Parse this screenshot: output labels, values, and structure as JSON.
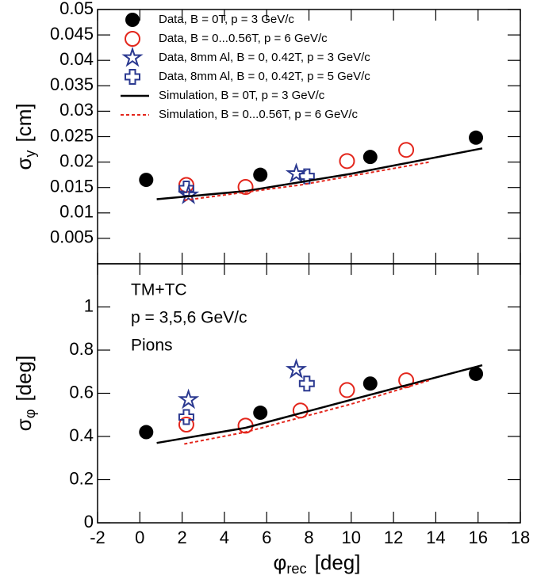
{
  "chart_data": [
    {
      "type": "scatter",
      "y_label": {
        "symbol": "σ",
        "sub": "y",
        "unit": "[cm]"
      },
      "xlim": [
        -2,
        18
      ],
      "xticks": [
        -2,
        0,
        2,
        4,
        6,
        8,
        10,
        12,
        14,
        16,
        18
      ],
      "ylim": [
        0,
        0.05
      ],
      "yticks": [
        0.005,
        0.01,
        0.015,
        0.02,
        0.025,
        0.03,
        0.035,
        0.04,
        0.045,
        0.05
      ],
      "legend": "upper left",
      "series": [
        {
          "name": "Data, B = 0T, p = 3 GeV/c",
          "color": "#000000",
          "marker": "circle-filled",
          "x": [
            0.3,
            5.7,
            10.9,
            15.9
          ],
          "values": [
            0.0165,
            0.0175,
            0.021,
            0.0248
          ]
        },
        {
          "name": "Data, B = 0...0.56T, p = 6 GeV/c",
          "color": "#e3261c",
          "marker": "circle-open",
          "x": [
            2.2,
            5.0,
            9.8,
            12.6
          ],
          "values": [
            0.0155,
            0.0151,
            0.0202,
            0.0224
          ]
        },
        {
          "name": "Data, 8mm Al, B = 0, 0.42T, p = 3 GeV/c",
          "color": "#2b3990",
          "marker": "star-open",
          "x": [
            2.3,
            7.4
          ],
          "values": [
            0.0135,
            0.0177
          ]
        },
        {
          "name": "Data, 8mm Al, B = 0, 0.42T, p = 5 GeV/c",
          "color": "#2b3990",
          "marker": "cross-open",
          "x": [
            2.2,
            7.9
          ],
          "values": [
            0.0148,
            0.0172
          ]
        },
        {
          "name": "Simulation, B = 0T, p = 3 GeV/c",
          "color": "#000000",
          "line": "solid",
          "x": [
            0.8,
            5,
            10,
            16.2
          ],
          "values": [
            0.0127,
            0.0143,
            0.0177,
            0.0227
          ]
        },
        {
          "name": "Simulation, B = 0...0.56T, p = 6 GeV/c",
          "color": "#e3261c",
          "line": "dashed",
          "x": [
            2.1,
            7.6,
            13.7
          ],
          "values": [
            0.0125,
            0.0155,
            0.02
          ]
        }
      ]
    },
    {
      "type": "scatter",
      "y_label": {
        "symbol": "σ",
        "sub": "φ",
        "unit": "[deg]"
      },
      "x_label": {
        "symbol": "φ",
        "sub": "rec",
        "unit": "[deg]"
      },
      "annotations": [
        "TM+TC",
        "p = 3,5,6 GeV/c",
        "Pions"
      ],
      "xlim": [
        -2,
        18
      ],
      "xticks": [
        -2,
        0,
        2,
        4,
        6,
        8,
        10,
        12,
        14,
        16,
        18
      ],
      "ylim": [
        0,
        1.2
      ],
      "yticks": [
        0,
        0.2,
        0.4,
        0.6,
        0.8,
        1
      ],
      "series": [
        {
          "color": "#000000",
          "marker": "circle-filled",
          "x": [
            0.3,
            5.7,
            10.9,
            15.9
          ],
          "values": [
            0.42,
            0.51,
            0.645,
            0.69
          ]
        },
        {
          "color": "#e3261c",
          "marker": "circle-open",
          "x": [
            2.2,
            5.0,
            7.6,
            9.8,
            12.6
          ],
          "values": [
            0.455,
            0.45,
            0.52,
            0.615,
            0.66
          ]
        },
        {
          "color": "#2b3990",
          "marker": "star-open",
          "x": [
            2.3,
            7.4
          ],
          "values": [
            0.57,
            0.71
          ]
        },
        {
          "color": "#2b3990",
          "marker": "cross-open",
          "x": [
            2.2,
            7.9
          ],
          "values": [
            0.49,
            0.645
          ]
        },
        {
          "color": "#000000",
          "line": "solid",
          "x": [
            0.8,
            5,
            10,
            16.2
          ],
          "values": [
            0.37,
            0.44,
            0.57,
            0.73
          ]
        },
        {
          "color": "#e3261c",
          "line": "dashed",
          "x": [
            2.1,
            5,
            10,
            13.7
          ],
          "values": [
            0.365,
            0.42,
            0.55,
            0.66
          ]
        }
      ]
    }
  ]
}
